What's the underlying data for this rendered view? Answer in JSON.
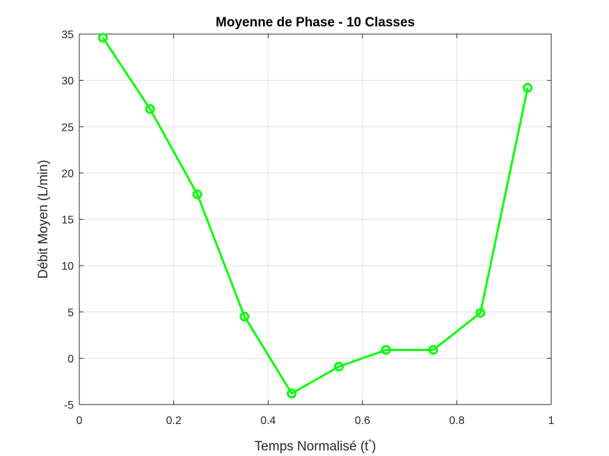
{
  "chart_data": {
    "type": "line",
    "title": "Moyenne de Phase - 10 Classes",
    "xlabel": "Temps Normalisé (t",
    "xlabel_superscript": "*",
    "xlabel_suffix": ")",
    "ylabel": "Débit Moyen (L/min)",
    "xlim": [
      0,
      1
    ],
    "ylim": [
      -5,
      35
    ],
    "x_ticks": [
      0,
      0.2,
      0.4,
      0.6,
      0.8,
      1
    ],
    "x_tick_labels": [
      "0",
      "0.2",
      "0.4",
      "0.6",
      "0.8",
      "1"
    ],
    "y_ticks": [
      -5,
      0,
      5,
      10,
      15,
      20,
      25,
      30,
      35
    ],
    "y_tick_labels": [
      "-5",
      "0",
      "5",
      "10",
      "15",
      "20",
      "25",
      "30",
      "35"
    ],
    "grid": true,
    "series": [
      {
        "x": [
          0.05,
          0.15,
          0.25,
          0.35,
          0.45,
          0.55,
          0.65,
          0.75,
          0.85,
          0.95
        ],
        "values": [
          34.6,
          26.9,
          17.7,
          4.5,
          -3.8,
          -0.9,
          0.9,
          0.9,
          4.9,
          29.2
        ],
        "color": "#00ff00",
        "marker": "circle"
      }
    ]
  }
}
